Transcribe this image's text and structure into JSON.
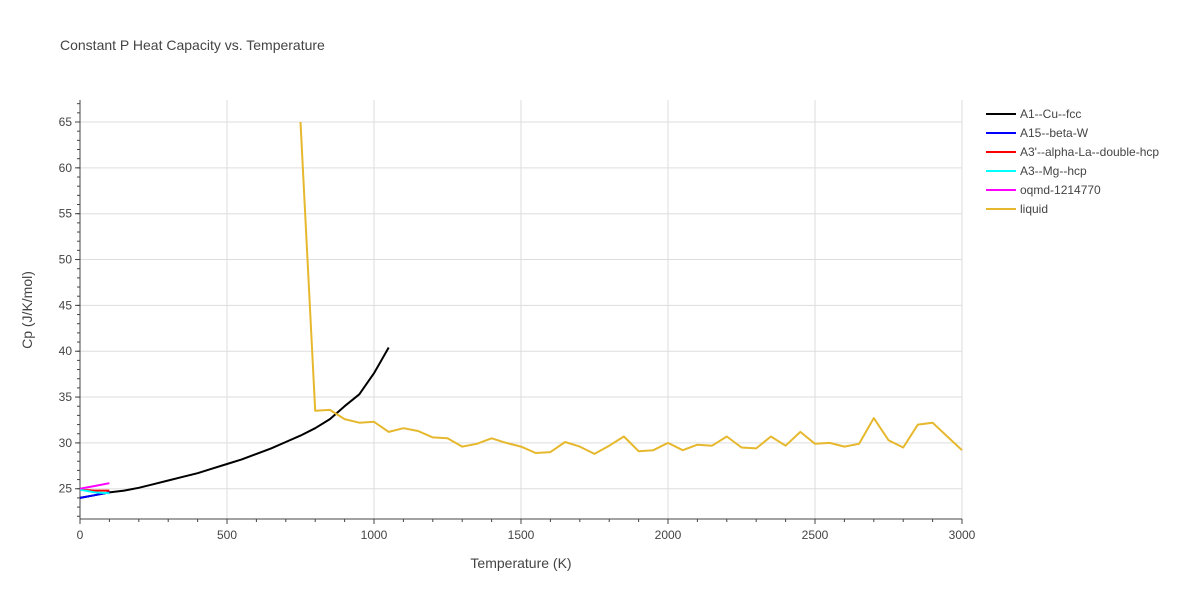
{
  "chart_data": {
    "type": "line",
    "title": "Constant P Heat Capacity vs. Temperature",
    "xlabel": "Temperature (K)",
    "ylabel": "Cp (J/K/mol)",
    "xlim": [
      0,
      3000
    ],
    "ylim": [
      21.7,
      67.4
    ],
    "xticks": [
      0,
      500,
      1000,
      1500,
      2000,
      2500,
      3000
    ],
    "xtick_labels": [
      "0",
      "500",
      "1000",
      "1500",
      "2000",
      "2500",
      "3000"
    ],
    "yticks": [
      25,
      30,
      35,
      40,
      45,
      50,
      55,
      60,
      65
    ],
    "ytick_labels": [
      "25",
      "30",
      "35",
      "40",
      "45",
      "50",
      "55",
      "60",
      "65"
    ],
    "grid": true,
    "legend_position": "right",
    "series": [
      {
        "name": "A1--Cu--fcc",
        "color": "#000000",
        "x": [
          0,
          50,
          100,
          150,
          200,
          250,
          300,
          350,
          400,
          450,
          500,
          550,
          600,
          650,
          700,
          750,
          800,
          850,
          900,
          950,
          1000,
          1050
        ],
        "y": [
          24.0,
          24.3,
          24.6,
          24.8,
          25.1,
          25.5,
          25.9,
          26.3,
          26.7,
          27.2,
          27.7,
          28.2,
          28.8,
          29.4,
          30.1,
          30.8,
          31.6,
          32.6,
          34.0,
          35.3,
          37.6,
          40.4
        ]
      },
      {
        "name": "A15--beta-W",
        "color": "#0000ff",
        "x": [
          0,
          50,
          100
        ],
        "y": [
          24.0,
          24.3,
          24.6
        ]
      },
      {
        "name": "A3'--alpha-La--double-hcp",
        "color": "#ff0000",
        "x": [
          0,
          50,
          100
        ],
        "y": [
          24.9,
          24.8,
          24.8
        ]
      },
      {
        "name": "A3--Mg--hcp",
        "color": "#00ffff",
        "x": [
          0,
          50,
          100
        ],
        "y": [
          24.9,
          24.6,
          24.5
        ]
      },
      {
        "name": "oqmd-1214770",
        "color": "#ff00ff",
        "x": [
          0,
          50,
          100
        ],
        "y": [
          25.0,
          25.3,
          25.6
        ]
      },
      {
        "name": "liquid",
        "color": "#e6b82e",
        "x": [
          750,
          800,
          850,
          900,
          950,
          1000,
          1050,
          1100,
          1150,
          1200,
          1250,
          1300,
          1350,
          1400,
          1450,
          1500,
          1550,
          1600,
          1650,
          1700,
          1750,
          1800,
          1850,
          1900,
          1950,
          2000,
          2050,
          2100,
          2150,
          2200,
          2250,
          2300,
          2350,
          2400,
          2450,
          2500,
          2550,
          2600,
          2650,
          2700,
          2750,
          2800,
          2850,
          2900,
          2950,
          3000
        ],
        "y": [
          65.0,
          33.5,
          33.6,
          32.6,
          32.2,
          32.3,
          31.2,
          31.6,
          31.3,
          30.6,
          30.5,
          29.6,
          29.9,
          30.5,
          30.0,
          29.6,
          28.9,
          29.0,
          30.1,
          29.6,
          28.8,
          29.7,
          30.7,
          29.1,
          29.2,
          30.0,
          29.2,
          29.8,
          29.7,
          30.7,
          29.5,
          29.4,
          30.7,
          29.7,
          31.2,
          29.9,
          30.0,
          29.6,
          29.9,
          32.7,
          30.3,
          29.5,
          32.0,
          32.2,
          30.7,
          29.2
        ]
      }
    ]
  }
}
